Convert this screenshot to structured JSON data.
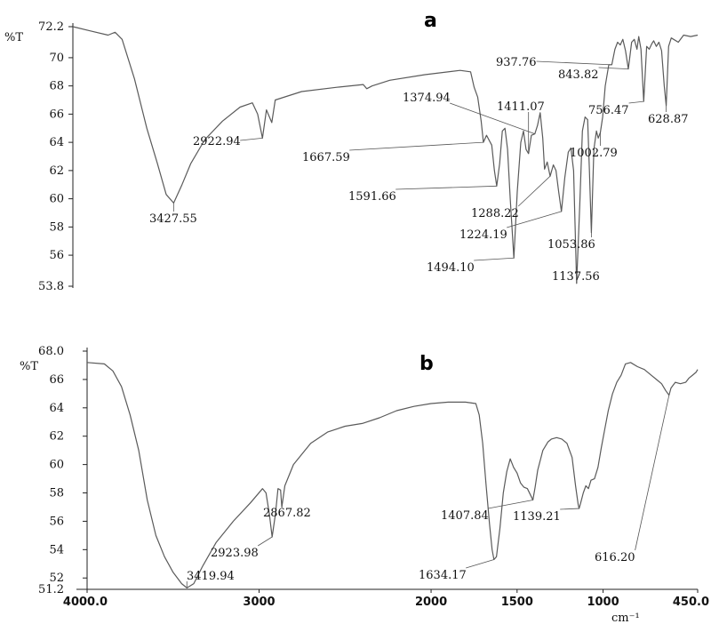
{
  "chart_data": [
    {
      "type": "line",
      "panel_label": "a",
      "ylabel": "%T",
      "xlim": [
        4000,
        450
      ],
      "ylim": [
        53.8,
        72.2
      ],
      "ytick_labels": [
        "72.2",
        "70",
        "68",
        "66",
        "64",
        "62",
        "60",
        "58",
        "56",
        "53.8"
      ],
      "peaks": [
        {
          "label": "3427.55",
          "x": 3427.55,
          "y": 59.7
        },
        {
          "label": "2922.94",
          "x": 2922.94,
          "y": 64.3
        },
        {
          "label": "1667.59",
          "x": 1667.59,
          "y": 64.0
        },
        {
          "label": "1591.66",
          "x": 1591.66,
          "y": 60.9
        },
        {
          "label": "1494.10",
          "x": 1494.1,
          "y": 55.8
        },
        {
          "label": "1374.94",
          "x": 1374.94,
          "y": 64.6
        },
        {
          "label": "1411.07",
          "x": 1411.07,
          "y": 63.2
        },
        {
          "label": "1288.22",
          "x": 1288.22,
          "y": 61.6
        },
        {
          "label": "1224.19",
          "x": 1224.19,
          "y": 59.1
        },
        {
          "label": "1137.56",
          "x": 1137.56,
          "y": 54.0
        },
        {
          "label": "1053.86",
          "x": 1053.86,
          "y": 57.6
        },
        {
          "label": "1002.79",
          "x": 1002.79,
          "y": 64.7
        },
        {
          "label": "937.76",
          "x": 937.76,
          "y": 69.5
        },
        {
          "label": "843.82",
          "x": 843.82,
          "y": 69.2
        },
        {
          "label": "756.47",
          "x": 756.47,
          "y": 66.9
        },
        {
          "label": "628.87",
          "x": 628.87,
          "y": 66.6
        }
      ],
      "points": [
        [
          4000,
          72.2
        ],
        [
          3900,
          71.9
        ],
        [
          3800,
          71.6
        ],
        [
          3760,
          71.8
        ],
        [
          3720,
          71.3
        ],
        [
          3650,
          68.5
        ],
        [
          3580,
          65.0
        ],
        [
          3520,
          62.5
        ],
        [
          3470,
          60.3
        ],
        [
          3427.55,
          59.7
        ],
        [
          3380,
          61.0
        ],
        [
          3330,
          62.5
        ],
        [
          3250,
          64.2
        ],
        [
          3150,
          65.5
        ],
        [
          3050,
          66.5
        ],
        [
          2980,
          66.8
        ],
        [
          2950,
          66.0
        ],
        [
          2922.94,
          64.3
        ],
        [
          2900,
          66.3
        ],
        [
          2870,
          65.4
        ],
        [
          2850,
          67.0
        ],
        [
          2700,
          67.6
        ],
        [
          2500,
          67.9
        ],
        [
          2350,
          68.1
        ],
        [
          2330,
          67.8
        ],
        [
          2300,
          68.0
        ],
        [
          2200,
          68.4
        ],
        [
          2000,
          68.8
        ],
        [
          1800,
          69.1
        ],
        [
          1740,
          69.0
        ],
        [
          1720,
          67.9
        ],
        [
          1700,
          67.2
        ],
        [
          1680,
          65.5
        ],
        [
          1667.59,
          64.0
        ],
        [
          1650,
          64.5
        ],
        [
          1620,
          63.8
        ],
        [
          1605,
          62.0
        ],
        [
          1591.66,
          60.9
        ],
        [
          1575,
          62.5
        ],
        [
          1560,
          64.8
        ],
        [
          1545,
          65.0
        ],
        [
          1530,
          63.5
        ],
        [
          1515,
          60.0
        ],
        [
          1494.1,
          55.8
        ],
        [
          1475,
          60.5
        ],
        [
          1455,
          64.0
        ],
        [
          1440,
          64.8
        ],
        [
          1425,
          63.5
        ],
        [
          1411.07,
          63.2
        ],
        [
          1395,
          64.5
        ],
        [
          1374.94,
          64.6
        ],
        [
          1360,
          65.2
        ],
        [
          1345,
          66.1
        ],
        [
          1330,
          64.3
        ],
        [
          1320,
          62.1
        ],
        [
          1305,
          62.6
        ],
        [
          1288.22,
          61.6
        ],
        [
          1270,
          62.4
        ],
        [
          1255,
          62.0
        ],
        [
          1240,
          60.5
        ],
        [
          1224.19,
          59.1
        ],
        [
          1205,
          61.5
        ],
        [
          1185,
          63.3
        ],
        [
          1170,
          63.6
        ],
        [
          1155,
          62.0
        ],
        [
          1137.56,
          54.0
        ],
        [
          1120,
          59.5
        ],
        [
          1105,
          64.8
        ],
        [
          1090,
          65.8
        ],
        [
          1075,
          65.6
        ],
        [
          1065,
          62.0
        ],
        [
          1053.86,
          57.6
        ],
        [
          1040,
          63.5
        ],
        [
          1025,
          64.8
        ],
        [
          1015,
          64.3
        ],
        [
          1002.79,
          64.7
        ],
        [
          990,
          65.8
        ],
        [
          975,
          68.0
        ],
        [
          955,
          69.5
        ],
        [
          937.76,
          69.5
        ],
        [
          920,
          70.6
        ],
        [
          905,
          71.1
        ],
        [
          890,
          70.9
        ],
        [
          875,
          71.3
        ],
        [
          860,
          70.5
        ],
        [
          843.82,
          69.2
        ],
        [
          825,
          71.1
        ],
        [
          810,
          71.3
        ],
        [
          795,
          70.6
        ],
        [
          785,
          71.5
        ],
        [
          772,
          70.6
        ],
        [
          756.47,
          66.9
        ],
        [
          740,
          70.8
        ],
        [
          725,
          70.6
        ],
        [
          710,
          71.0
        ],
        [
          700,
          71.2
        ],
        [
          685,
          70.8
        ],
        [
          670,
          71.1
        ],
        [
          655,
          70.5
        ],
        [
          640,
          68.0
        ],
        [
          628.87,
          66.6
        ],
        [
          615,
          70.8
        ],
        [
          600,
          71.4
        ],
        [
          560,
          71.1
        ],
        [
          530,
          71.6
        ],
        [
          490,
          71.5
        ],
        [
          450,
          71.6
        ]
      ]
    },
    {
      "type": "line",
      "panel_label": "b",
      "ylabel": "%T",
      "xlabel": "cm⁻¹",
      "xlim": [
        4000,
        450
      ],
      "ylim": [
        51.2,
        68.0
      ],
      "ytick_labels": [
        "68.0",
        "66",
        "64",
        "62",
        "60",
        "58",
        "56",
        "54",
        "52",
        "51.2"
      ],
      "xtick_labels": [
        "4000.0",
        "3000",
        "2000",
        "1500",
        "1000",
        "450.0"
      ],
      "xtick_values": [
        4000,
        3000,
        2000,
        1500,
        1000,
        450
      ],
      "peaks": [
        {
          "label": "3419.94",
          "x": 3419.94,
          "y": 51.3
        },
        {
          "label": "2923.98",
          "x": 2923.98,
          "y": 54.9
        },
        {
          "label": "2867.82",
          "x": 2867.82,
          "y": 57.0
        },
        {
          "label": "1634.17",
          "x": 1634.17,
          "y": 53.3
        },
        {
          "label": "1407.84",
          "x": 1407.84,
          "y": 57.5
        },
        {
          "label": "1139.21",
          "x": 1139.21,
          "y": 56.9
        },
        {
          "label": "616.20",
          "x": 616.2,
          "y": 64.9
        }
      ],
      "points": [
        [
          4000,
          67.2
        ],
        [
          3900,
          67.1
        ],
        [
          3850,
          66.6
        ],
        [
          3800,
          65.5
        ],
        [
          3750,
          63.5
        ],
        [
          3700,
          61.0
        ],
        [
          3650,
          57.5
        ],
        [
          3600,
          55.0
        ],
        [
          3550,
          53.5
        ],
        [
          3500,
          52.4
        ],
        [
          3450,
          51.6
        ],
        [
          3419.94,
          51.3
        ],
        [
          3380,
          51.6
        ],
        [
          3330,
          52.8
        ],
        [
          3250,
          54.5
        ],
        [
          3150,
          56.0
        ],
        [
          3050,
          57.3
        ],
        [
          2980,
          58.3
        ],
        [
          2960,
          58.0
        ],
        [
          2940,
          56.5
        ],
        [
          2923.98,
          54.9
        ],
        [
          2905,
          56.5
        ],
        [
          2890,
          58.3
        ],
        [
          2875,
          58.2
        ],
        [
          2867.82,
          57.0
        ],
        [
          2850,
          58.5
        ],
        [
          2800,
          60.0
        ],
        [
          2700,
          61.5
        ],
        [
          2600,
          62.3
        ],
        [
          2500,
          62.7
        ],
        [
          2400,
          62.9
        ],
        [
          2300,
          63.3
        ],
        [
          2200,
          63.8
        ],
        [
          2100,
          64.1
        ],
        [
          2000,
          64.3
        ],
        [
          1900,
          64.4
        ],
        [
          1800,
          64.4
        ],
        [
          1740,
          64.3
        ],
        [
          1720,
          63.5
        ],
        [
          1700,
          61.5
        ],
        [
          1680,
          58.5
        ],
        [
          1660,
          55.8
        ],
        [
          1645,
          54.0
        ],
        [
          1634.17,
          53.3
        ],
        [
          1620,
          53.5
        ],
        [
          1600,
          55.5
        ],
        [
          1580,
          58.0
        ],
        [
          1560,
          59.5
        ],
        [
          1540,
          60.4
        ],
        [
          1520,
          59.8
        ],
        [
          1500,
          59.4
        ],
        [
          1480,
          58.7
        ],
        [
          1460,
          58.4
        ],
        [
          1440,
          58.3
        ],
        [
          1420,
          57.8
        ],
        [
          1407.84,
          57.5
        ],
        [
          1395,
          58.4
        ],
        [
          1380,
          59.6
        ],
        [
          1350,
          61.0
        ],
        [
          1320,
          61.6
        ],
        [
          1300,
          61.8
        ],
        [
          1270,
          61.9
        ],
        [
          1240,
          61.8
        ],
        [
          1210,
          61.5
        ],
        [
          1180,
          60.5
        ],
        [
          1160,
          58.5
        ],
        [
          1145,
          57.2
        ],
        [
          1139.21,
          56.9
        ],
        [
          1130,
          57.3
        ],
        [
          1115,
          58.0
        ],
        [
          1100,
          58.5
        ],
        [
          1085,
          58.3
        ],
        [
          1070,
          58.9
        ],
        [
          1050,
          59.0
        ],
        [
          1030,
          59.8
        ],
        [
          1010,
          61.2
        ],
        [
          990,
          62.5
        ],
        [
          970,
          63.8
        ],
        [
          945,
          65.0
        ],
        [
          920,
          65.8
        ],
        [
          895,
          66.3
        ],
        [
          870,
          67.1
        ],
        [
          840,
          67.2
        ],
        [
          800,
          66.9
        ],
        [
          760,
          66.7
        ],
        [
          720,
          66.3
        ],
        [
          690,
          66.0
        ],
        [
          660,
          65.7
        ],
        [
          635,
          65.2
        ],
        [
          616.2,
          64.9
        ],
        [
          605,
          65.4
        ],
        [
          580,
          65.8
        ],
        [
          550,
          65.7
        ],
        [
          520,
          65.8
        ],
        [
          500,
          66.1
        ],
        [
          480,
          66.3
        ],
        [
          460,
          66.5
        ],
        [
          450,
          66.7
        ]
      ]
    }
  ]
}
